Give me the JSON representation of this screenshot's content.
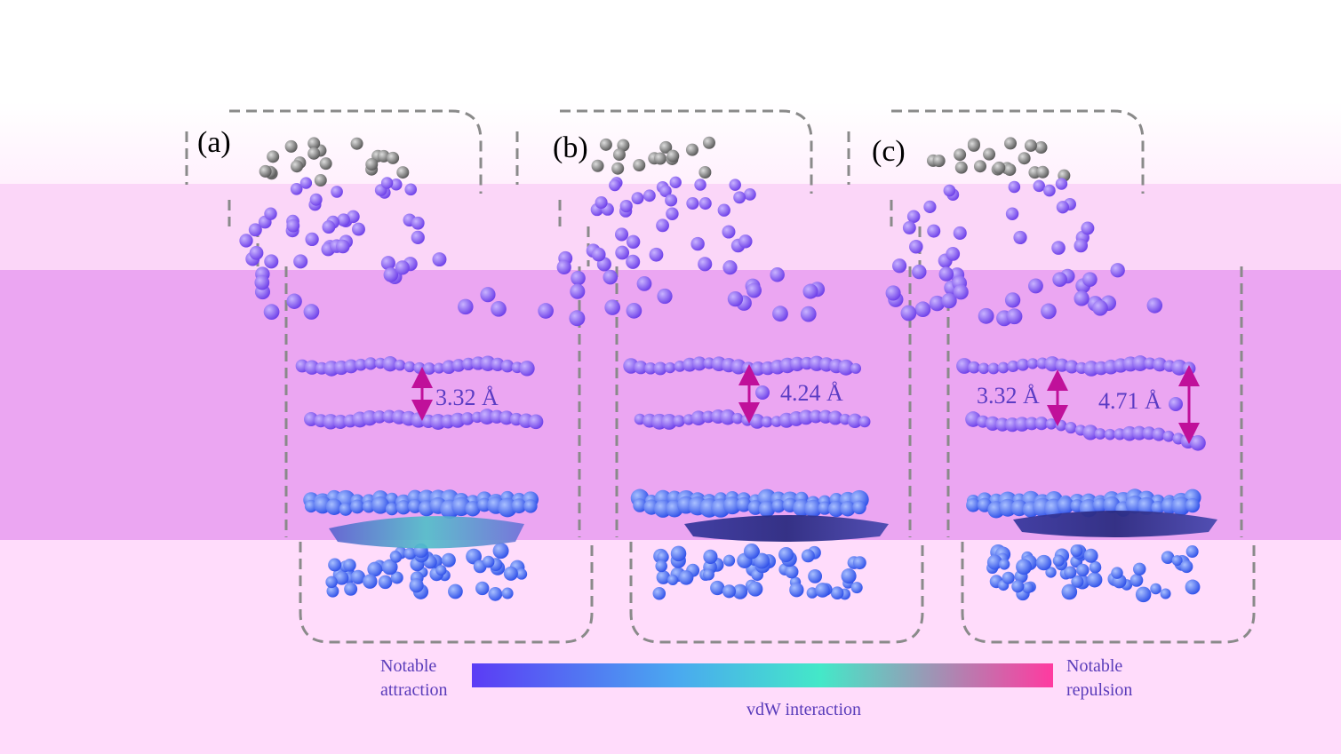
{
  "panels": [
    {
      "label": "(a)",
      "distances": [
        "3.32 Å"
      ]
    },
    {
      "label": "(b)",
      "distances": [
        "4.24 Å"
      ]
    },
    {
      "label": "(c)",
      "distances": [
        "3.32 Å",
        "4.71 Å"
      ]
    }
  ],
  "colorbar": {
    "left_label_line1": "Notable",
    "left_label_line2": "attraction",
    "right_label_line1": "Notable",
    "right_label_line2": "repulsion",
    "title": "vdW interaction",
    "gradient_colors": [
      "#5b3cf5",
      "#4aa8f0",
      "#44e8c8",
      "#ff3aa0"
    ]
  },
  "colors": {
    "overlay_light": "#ffe0fb",
    "overlay_mid": "#f6c8f4",
    "overlay_strong": "#e9a3f1",
    "atom_purple": "#7a4cf0",
    "atom_blue": "#3f5cf2",
    "arrow_magenta": "#c0109a",
    "dashed_border": "#8a5cd8"
  }
}
